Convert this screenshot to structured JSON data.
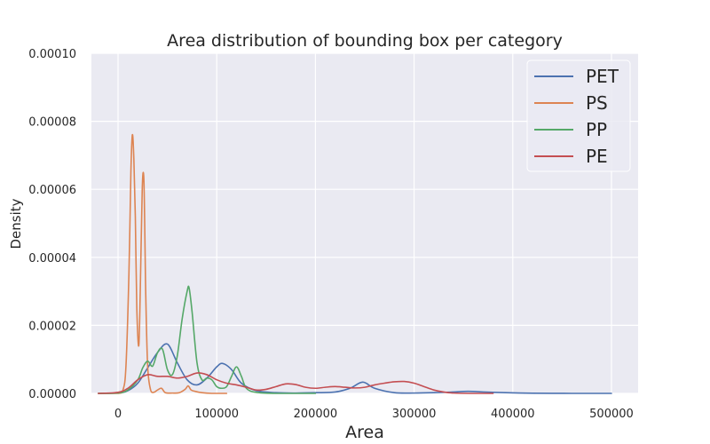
{
  "chart_data": {
    "type": "line",
    "title": "Area distribution of bounding box per category",
    "xlabel": "Area",
    "ylabel": "Density",
    "xlim": [
      -27000,
      527000
    ],
    "ylim": [
      0,
      0.0001
    ],
    "x_ticks": [
      0,
      100000,
      200000,
      300000,
      400000,
      500000
    ],
    "x_tick_labels": [
      "0",
      "100000",
      "200000",
      "300000",
      "400000",
      "500000"
    ],
    "y_ticks": [
      0,
      2e-05,
      4e-05,
      6e-05,
      8e-05,
      0.0001
    ],
    "y_tick_labels": [
      "0.00000",
      "0.00002",
      "0.00004",
      "0.00006",
      "0.00008",
      "0.00010"
    ],
    "grid": true,
    "legend_position": "top-right",
    "series": [
      {
        "name": "PET",
        "color": "#4c72b0",
        "x": [
          -20000,
          0,
          10000,
          20000,
          30000,
          40000,
          50000,
          60000,
          70000,
          80000,
          90000,
          100000,
          106000,
          115000,
          125000,
          140000,
          160000,
          180000,
          200000,
          220000,
          235000,
          248000,
          260000,
          280000,
          300000,
          320000,
          340000,
          355000,
          380000,
          420000,
          460000,
          500000
        ],
        "y": [
          0,
          1e-07,
          8e-07,
          3e-06,
          7.5e-06,
          1.2e-05,
          1.45e-05,
          9e-06,
          4e-06,
          2.5e-06,
          4.5e-06,
          7.8e-06,
          8.8e-06,
          7e-06,
          3e-06,
          8e-07,
          2e-07,
          1e-07,
          2e-07,
          4e-07,
          1.5e-06,
          3.3e-06,
          1.5e-06,
          2e-07,
          1e-07,
          2e-07,
          4e-07,
          6e-07,
          3e-07,
          5e-08,
          0,
          0
        ]
      },
      {
        "name": "PS",
        "color": "#dd8452",
        "x": [
          -20000,
          0,
          5000,
          8000,
          11000,
          13000,
          14500,
          16000,
          17500,
          19000,
          21000,
          22500,
          24500,
          26000,
          27000,
          28000,
          30000,
          33000,
          36000,
          40000,
          44000,
          48000,
          55000,
          62000,
          68000,
          71000,
          74000,
          78000,
          85000,
          95000,
          110000
        ],
        "y": [
          0,
          0,
          1e-06,
          8e-06,
          3.5e-05,
          6.5e-05,
          7.6e-05,
          6.9e-05,
          5.2e-05,
          2.5e-05,
          1.4e-05,
          3e-05,
          6e-05,
          6.4e-05,
          5e-05,
          3e-05,
          8e-06,
          1e-06,
          3e-07,
          1e-06,
          1.5e-06,
          2e-07,
          1e-07,
          2e-07,
          1.2e-06,
          2.2e-06,
          1e-06,
          6e-07,
          2e-07,
          0,
          0
        ]
      },
      {
        "name": "PP",
        "color": "#55a868",
        "x": [
          -20000,
          0,
          10000,
          20000,
          25000,
          30000,
          35000,
          40000,
          45000,
          50000,
          55000,
          60000,
          65000,
          70000,
          72000,
          75000,
          80000,
          85000,
          90000,
          95000,
          100000,
          105000,
          110000,
          115000,
          120000,
          125000,
          130000,
          140000,
          160000,
          200000
        ],
        "y": [
          0,
          1e-07,
          1e-06,
          4e-06,
          7.5e-06,
          9.5e-06,
          8e-06,
          1.2e-05,
          1.3e-05,
          7e-06,
          5.5e-06,
          1.1e-05,
          2.2e-05,
          3e-05,
          3.1e-05,
          2.4e-05,
          9e-06,
          4e-06,
          4.5e-06,
          4e-06,
          2e-06,
          1.5e-06,
          2e-06,
          5e-06,
          7.8e-06,
          5e-06,
          1.5e-06,
          3e-07,
          0,
          0
        ]
      },
      {
        "name": "PE",
        "color": "#c44e52",
        "x": [
          -20000,
          0,
          10000,
          20000,
          30000,
          40000,
          50000,
          60000,
          70000,
          80000,
          90000,
          100000,
          110000,
          120000,
          130000,
          140000,
          150000,
          160000,
          170000,
          180000,
          190000,
          200000,
          210000,
          220000,
          230000,
          240000,
          250000,
          260000,
          270000,
          280000,
          290000,
          300000,
          310000,
          320000,
          330000,
          340000,
          360000,
          380000
        ],
        "y": [
          0,
          3e-07,
          1.5e-06,
          4e-06,
          5.5e-06,
          5e-06,
          5e-06,
          4.5e-06,
          5e-06,
          6e-06,
          5.5e-06,
          4e-06,
          3e-06,
          2.5e-06,
          1.8e-06,
          1e-06,
          1.2e-06,
          2e-06,
          2.8e-06,
          2.6e-06,
          1.8e-06,
          1.5e-06,
          1.8e-06,
          2e-06,
          1.8e-06,
          1.6e-06,
          1.8e-06,
          2.5e-06,
          3e-06,
          3.4e-06,
          3.5e-06,
          3e-06,
          2e-06,
          1e-06,
          4e-07,
          1e-07,
          0,
          0
        ]
      }
    ]
  }
}
